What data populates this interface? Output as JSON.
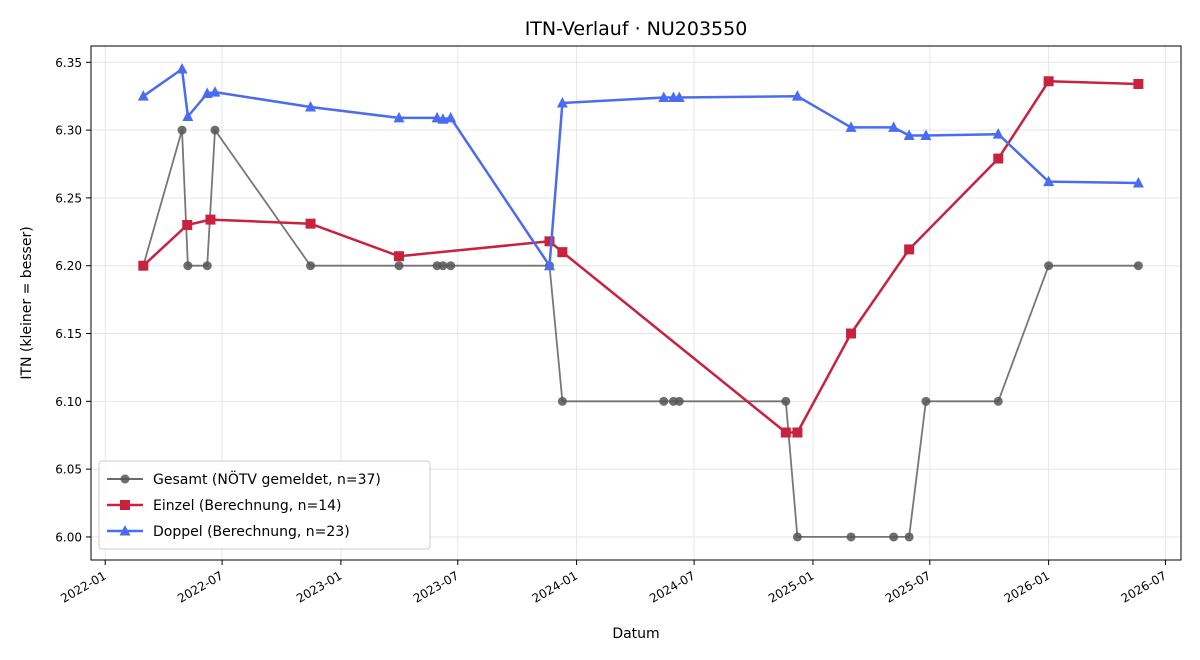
{
  "chart_data": {
    "type": "line",
    "title": "ITN-Verlauf · NU203550",
    "xlabel": "Datum",
    "ylabel": "ITN  (kleiner = besser)",
    "x_ticks": [
      "2022-01",
      "2022-07",
      "2023-01",
      "2023-07",
      "2024-01",
      "2024-07",
      "2025-01",
      "2025-07",
      "2026-01",
      "2026-07"
    ],
    "y_ticks": [
      "6.00",
      "6.05",
      "6.10",
      "6.15",
      "6.20",
      "6.25",
      "6.30",
      "6.35"
    ],
    "xlim": [
      "2021-12-10",
      "2026-07-25"
    ],
    "ylim": [
      5.983,
      6.362
    ],
    "grid": true,
    "legend_position": "lower-left",
    "series": [
      {
        "name": "Gesamt (NÖTV gemeldet, n=37)",
        "color": "#555555",
        "marker": "circle",
        "points": [
          [
            "2022-03-01",
            6.2
          ],
          [
            "2022-04-30",
            6.3
          ],
          [
            "2022-05-09",
            6.2
          ],
          [
            "2022-06-08",
            6.2
          ],
          [
            "2022-06-20",
            6.3
          ],
          [
            "2022-11-15",
            6.2
          ],
          [
            "2023-04-01",
            6.2
          ],
          [
            "2023-05-30",
            6.2
          ],
          [
            "2023-06-08",
            6.2
          ],
          [
            "2023-06-20",
            6.2
          ],
          [
            "2023-11-20",
            6.2
          ],
          [
            "2023-12-10",
            6.1
          ],
          [
            "2024-05-15",
            6.1
          ],
          [
            "2024-05-30",
            6.1
          ],
          [
            "2024-06-08",
            6.1
          ],
          [
            "2024-11-20",
            6.1
          ],
          [
            "2024-12-08",
            6.0
          ],
          [
            "2025-03-01",
            6.0
          ],
          [
            "2025-05-06",
            6.0
          ],
          [
            "2025-05-30",
            6.0
          ],
          [
            "2025-06-25",
            6.1
          ],
          [
            "2025-10-15",
            6.1
          ],
          [
            "2026-01-01",
            6.2
          ],
          [
            "2026-05-20",
            6.2
          ]
        ]
      },
      {
        "name": "Einzel (Berechnung, n=14)",
        "color": "#c8223f",
        "marker": "square",
        "points": [
          [
            "2022-03-01",
            6.2
          ],
          [
            "2022-05-08",
            6.23
          ],
          [
            "2022-06-13",
            6.234
          ],
          [
            "2022-11-15",
            6.231
          ],
          [
            "2023-04-01",
            6.207
          ],
          [
            "2023-11-20",
            6.218
          ],
          [
            "2023-12-10",
            6.21
          ],
          [
            "2024-11-20",
            6.077
          ],
          [
            "2024-12-08",
            6.077
          ],
          [
            "2025-03-01",
            6.15
          ],
          [
            "2025-05-30",
            6.212
          ],
          [
            "2025-10-15",
            6.279
          ],
          [
            "2026-01-01",
            6.336
          ],
          [
            "2026-05-20",
            6.334
          ]
        ]
      },
      {
        "name": "Doppel (Berechnung, n=23)",
        "color": "#4a6cf0",
        "marker": "triangle",
        "points": [
          [
            "2022-03-01",
            6.325
          ],
          [
            "2022-04-30",
            6.345
          ],
          [
            "2022-05-09",
            6.31
          ],
          [
            "2022-06-08",
            6.327
          ],
          [
            "2022-06-20",
            6.328
          ],
          [
            "2022-11-15",
            6.317
          ],
          [
            "2023-04-01",
            6.309
          ],
          [
            "2023-05-30",
            6.309
          ],
          [
            "2023-06-08",
            6.308
          ],
          [
            "2023-06-20",
            6.309
          ],
          [
            "2023-11-20",
            6.2
          ],
          [
            "2023-12-10",
            6.32
          ],
          [
            "2024-05-15",
            6.324
          ],
          [
            "2024-05-30",
            6.324
          ],
          [
            "2024-06-08",
            6.324
          ],
          [
            "2024-12-08",
            6.325
          ],
          [
            "2025-03-01",
            6.302
          ],
          [
            "2025-05-06",
            6.302
          ],
          [
            "2025-05-30",
            6.296
          ],
          [
            "2025-06-25",
            6.296
          ],
          [
            "2025-10-15",
            6.297
          ],
          [
            "2026-01-01",
            6.262
          ],
          [
            "2026-05-20",
            6.261
          ]
        ]
      }
    ]
  }
}
